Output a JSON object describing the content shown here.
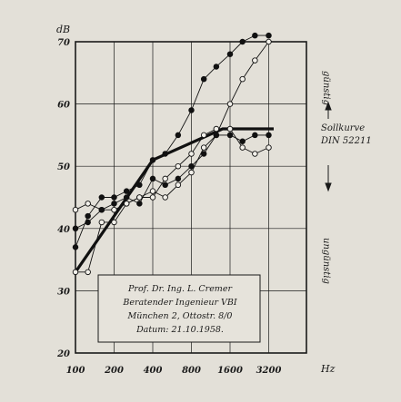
{
  "chart_data": {
    "type": "line",
    "title": "",
    "ylabel": "dB",
    "xlabel": "Hz",
    "x_scale": "log2",
    "x_ticks": [
      "100",
      "200",
      "400",
      "800",
      "1600",
      "3200"
    ],
    "y_ticks": [
      "20",
      "30",
      "40",
      "50",
      "60",
      "70"
    ],
    "ylim": [
      20,
      70
    ],
    "xlim": [
      100,
      3500
    ],
    "grid": true,
    "reference_label_lines": [
      "Sollkurve",
      "DIN 52211"
    ],
    "side_labels": {
      "upper": "günstig",
      "lower": "ungünstig"
    },
    "note_lines": [
      "Prof. Dr. Ing. L. Cremer",
      "Beratender Ingenieur VBI",
      "München 2, Ottostr. 8/0",
      "Datum: 21.10.1958."
    ],
    "series": [
      {
        "role": "reference",
        "x": [
          100,
          400,
          1400,
          3200,
          3500
        ],
        "y": [
          33,
          51,
          56,
          56,
          56
        ]
      },
      {
        "marker": "filled",
        "x": [
          100,
          125,
          160,
          200,
          250,
          315,
          400,
          500,
          630,
          800,
          1000,
          1250,
          1600,
          2000,
          2500,
          3200
        ],
        "y": [
          37,
          42,
          45,
          45,
          46,
          47,
          51,
          52,
          55,
          59,
          64,
          66,
          68,
          70,
          71,
          71
        ]
      },
      {
        "marker": "open",
        "x": [
          100,
          125,
          160,
          200,
          250,
          315,
          400,
          500,
          630,
          800,
          1000,
          1250,
          1600,
          2000,
          2500,
          3200
        ],
        "y": [
          33,
          33,
          41,
          41,
          44,
          45,
          46,
          45,
          47,
          49,
          53,
          55,
          60,
          64,
          67,
          70
        ]
      },
      {
        "marker": "open",
        "x": [
          100,
          125,
          160,
          200,
          250,
          315,
          400,
          500,
          630,
          800,
          1000,
          1250,
          1600,
          2000,
          2500,
          3200
        ],
        "y": [
          43,
          44,
          43,
          43,
          44,
          45,
          45,
          48,
          50,
          52,
          55,
          56,
          56,
          53,
          52,
          53
        ]
      },
      {
        "marker": "filled",
        "x": [
          100,
          125,
          160,
          200,
          250,
          315,
          400,
          500,
          630,
          800,
          1000,
          1250,
          1600,
          2000,
          2500,
          3200
        ],
        "y": [
          40,
          41,
          43,
          44,
          45,
          44,
          48,
          47,
          48,
          50,
          52,
          55,
          55,
          54,
          55,
          55
        ]
      }
    ]
  }
}
